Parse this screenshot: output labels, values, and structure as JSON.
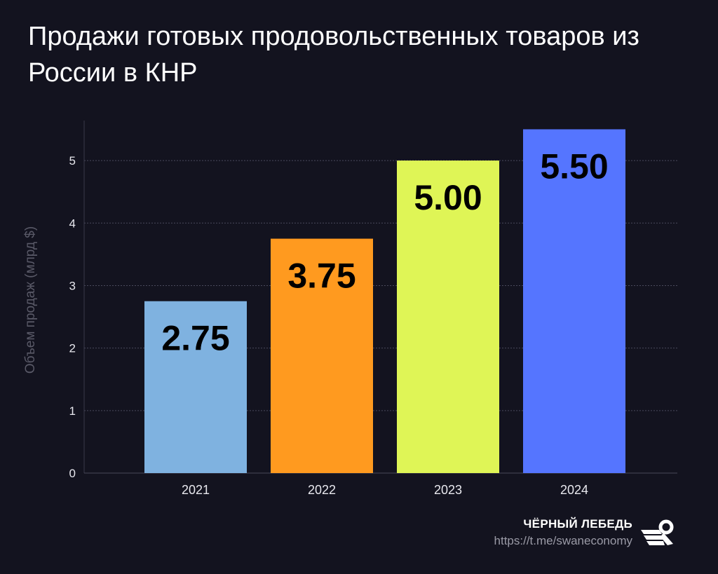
{
  "title": "Продажи готовых продовольственных товаров из России в КНР",
  "chart_data": {
    "type": "bar",
    "title": "Продажи готовых продовольственных товаров из России в КНР",
    "categories": [
      "2021",
      "2022",
      "2023",
      "2024"
    ],
    "values": [
      2.75,
      3.75,
      5.0,
      5.5
    ],
    "data_labels": [
      "2.75",
      "3.75",
      "5.00",
      "5.50"
    ],
    "colors": [
      "#7fb2e0",
      "#ff9a1f",
      "#dff556",
      "#5575ff"
    ],
    "xlabel": "",
    "ylabel": "Объем продаж (млрд $)",
    "ylim": [
      0,
      5.64
    ],
    "yticks": [
      "0",
      "1",
      "2",
      "3",
      "4",
      "5"
    ],
    "grid": true,
    "legend": "none"
  },
  "brand": {
    "name": "ЧЁРНЫЙ ЛЕБЕДЬ",
    "url": "https://t.me/swaneconomy",
    "logo_icon": "swan-logo-icon"
  }
}
